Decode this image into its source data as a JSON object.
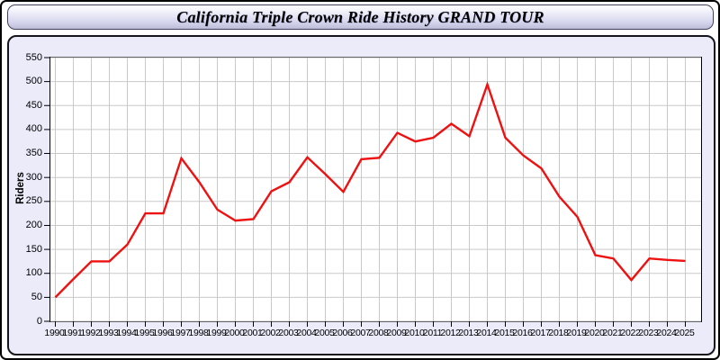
{
  "window": {
    "title": "California Triple Crown Ride History GRAND TOUR"
  },
  "chart_data": {
    "type": "line",
    "title": "California Triple Crown Ride History GRAND TOUR",
    "xlabel": "",
    "ylabel": "Riders",
    "ylim": [
      0,
      550
    ],
    "y_ticks": [
      0,
      50,
      100,
      150,
      200,
      250,
      300,
      350,
      400,
      450,
      500,
      550
    ],
    "grid": true,
    "legend_position": "none",
    "x": [
      1990,
      1991,
      1992,
      1993,
      1994,
      1995,
      1996,
      1997,
      1998,
      1999,
      2000,
      2001,
      2002,
      2003,
      2004,
      2005,
      2006,
      2007,
      2008,
      2009,
      2010,
      2011,
      2012,
      2013,
      2014,
      2015,
      2016,
      2017,
      2018,
      2019,
      2020,
      2021,
      2022,
      2023,
      2024,
      2025
    ],
    "series": [
      {
        "name": "Riders",
        "color": "#ee1111",
        "values": [
          50,
          88,
          125,
          125,
          160,
          225,
          225,
          340,
          290,
          233,
          210,
          213,
          271,
          290,
          342,
          307,
          270,
          338,
          341,
          393,
          375,
          383,
          412,
          386,
          494,
          383,
          346,
          319,
          260,
          218,
          138,
          131,
          86,
          131,
          128,
          126
        ]
      }
    ],
    "colors": {
      "plot_background": "#ffffff",
      "panel_background": "#ebebfa",
      "gridline": "#c9c9c9",
      "axis": "#000000",
      "titlebar_gradient_top": "#ffffff",
      "titlebar_gradient_bottom": "#bdbdd9"
    }
  }
}
